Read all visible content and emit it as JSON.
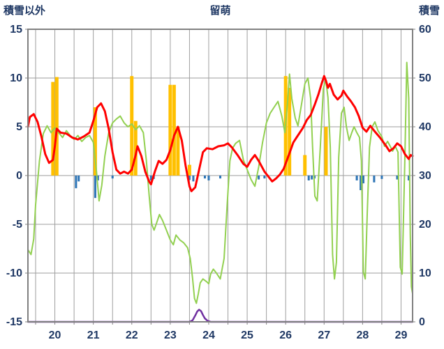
{
  "chart_data": {
    "type": "line",
    "title": "留萌",
    "legend": "none",
    "grid": true,
    "colors": {
      "grid": "#9E9E9E",
      "border": "#808080",
      "tick_label": "#1F3864",
      "temperature": "#FF0000",
      "green_series": "#92D050",
      "sunshine_bars": "#FFC000",
      "precip_bars": "#2E75B6",
      "snow_depth": "#7030A0"
    },
    "left_axis": {
      "label": "積雪以外",
      "min": -15,
      "max": 15,
      "ticks": [
        15,
        10,
        5,
        0,
        -5,
        -10,
        -15
      ]
    },
    "right_axis": {
      "label": "積雪",
      "min": 0,
      "max": 60,
      "ticks": [
        60,
        50,
        40,
        30,
        20,
        10,
        0
      ]
    },
    "x_axis": {
      "min": 19.3,
      "max": 29.3,
      "tick_values": [
        20,
        21,
        22,
        23,
        24,
        25,
        26,
        27,
        28,
        29
      ],
      "grid_start": 19.5,
      "grid_end": 29.0,
      "grid_step": 0.5
    },
    "series": [
      {
        "name": "sunshine-bars",
        "type": "bar",
        "axis": "left",
        "color": "#FFC000",
        "bar_width_days": 0.09,
        "points": [
          [
            19.95,
            9.6
          ],
          [
            20.05,
            10.1
          ],
          [
            21.05,
            7.0
          ],
          [
            22.0,
            10.2
          ],
          [
            22.1,
            5.6
          ],
          [
            23.0,
            9.3
          ],
          [
            23.1,
            9.3
          ],
          [
            23.2,
            5.0
          ],
          [
            23.5,
            1.1
          ],
          [
            26.0,
            10.2
          ],
          [
            26.1,
            9.0
          ],
          [
            26.5,
            2.1
          ],
          [
            27.05,
            5.0
          ]
        ]
      },
      {
        "name": "precipitation-bars",
        "type": "bar",
        "axis": "left",
        "color": "#2E75B6",
        "bar_width_days": 0.055,
        "points": [
          [
            20.55,
            -1.3
          ],
          [
            20.62,
            -0.6
          ],
          [
            21.05,
            -2.3
          ],
          [
            21.12,
            -0.5
          ],
          [
            21.5,
            -0.3
          ],
          [
            22.5,
            -0.5
          ],
          [
            22.57,
            -0.35
          ],
          [
            23.5,
            -0.45
          ],
          [
            23.6,
            -0.6
          ],
          [
            23.9,
            -0.3
          ],
          [
            24.0,
            -0.5
          ],
          [
            24.3,
            -0.3
          ],
          [
            25.3,
            -0.4
          ],
          [
            25.45,
            -0.3
          ],
          [
            26.6,
            -0.5
          ],
          [
            26.68,
            -0.4
          ],
          [
            26.75,
            -0.3
          ],
          [
            27.85,
            -0.5
          ],
          [
            27.95,
            -1.5
          ],
          [
            28.02,
            -0.8
          ],
          [
            28.3,
            -0.7
          ],
          [
            28.5,
            -0.35
          ],
          [
            28.9,
            -0.4
          ],
          [
            29.2,
            -0.5
          ]
        ]
      },
      {
        "name": "snow-depth-line",
        "type": "line",
        "axis": "right",
        "color": "#7030A0",
        "width": 2.5,
        "points": [
          [
            19.3,
            0
          ],
          [
            23.5,
            0
          ],
          [
            23.58,
            0.3
          ],
          [
            23.65,
            1.3
          ],
          [
            23.7,
            2.1
          ],
          [
            23.75,
            2.5
          ],
          [
            23.8,
            2.2
          ],
          [
            23.85,
            1.4
          ],
          [
            23.9,
            0.7
          ],
          [
            23.97,
            0.2
          ],
          [
            24.05,
            0
          ],
          [
            29.3,
            0
          ]
        ]
      },
      {
        "name": "green-line",
        "type": "line",
        "axis": "left",
        "color": "#92D050",
        "width": 2,
        "points": [
          [
            19.3,
            -7.6
          ],
          [
            19.38,
            -8.1
          ],
          [
            19.45,
            -6.5
          ],
          [
            19.5,
            -3.0
          ],
          [
            19.6,
            1.5
          ],
          [
            19.7,
            4.3
          ],
          [
            19.8,
            5.1
          ],
          [
            19.9,
            4.4
          ],
          [
            20.0,
            4.9
          ],
          [
            20.1,
            4.4
          ],
          [
            20.2,
            3.9
          ],
          [
            20.3,
            4.6
          ],
          [
            20.4,
            4.1
          ],
          [
            20.5,
            3.7
          ],
          [
            20.6,
            4.1
          ],
          [
            20.7,
            3.5
          ],
          [
            20.8,
            3.9
          ],
          [
            20.9,
            4.1
          ],
          [
            21.0,
            3.4
          ],
          [
            21.08,
            0.5
          ],
          [
            21.15,
            -2.6
          ],
          [
            21.22,
            -1.0
          ],
          [
            21.3,
            2.0
          ],
          [
            21.4,
            4.4
          ],
          [
            21.5,
            5.4
          ],
          [
            21.6,
            5.8
          ],
          [
            21.7,
            6.1
          ],
          [
            21.8,
            5.4
          ],
          [
            21.9,
            5.0
          ],
          [
            22.0,
            5.3
          ],
          [
            22.1,
            4.7
          ],
          [
            22.2,
            5.1
          ],
          [
            22.3,
            4.4
          ],
          [
            22.38,
            1.5
          ],
          [
            22.45,
            -2.0
          ],
          [
            22.52,
            -5.0
          ],
          [
            22.58,
            -5.6
          ],
          [
            22.65,
            -4.8
          ],
          [
            22.72,
            -4.0
          ],
          [
            22.8,
            -4.6
          ],
          [
            22.9,
            -5.6
          ],
          [
            23.0,
            -6.6
          ],
          [
            23.08,
            -7.1
          ],
          [
            23.15,
            -6.1
          ],
          [
            23.25,
            -6.6
          ],
          [
            23.35,
            -6.9
          ],
          [
            23.45,
            -7.4
          ],
          [
            23.52,
            -8.5
          ],
          [
            23.58,
            -10.5
          ],
          [
            23.63,
            -12.6
          ],
          [
            23.68,
            -13.1
          ],
          [
            23.73,
            -12.1
          ],
          [
            23.78,
            -11.0
          ],
          [
            23.85,
            -10.6
          ],
          [
            23.95,
            -10.9
          ],
          [
            24.0,
            -11.1
          ],
          [
            24.05,
            -10.1
          ],
          [
            24.12,
            -9.6
          ],
          [
            24.2,
            -10.0
          ],
          [
            24.3,
            -10.6
          ],
          [
            24.4,
            -8.5
          ],
          [
            24.48,
            -3.0
          ],
          [
            24.55,
            1.5
          ],
          [
            24.62,
            2.8
          ],
          [
            24.7,
            3.3
          ],
          [
            24.8,
            3.6
          ],
          [
            24.9,
            1.6
          ],
          [
            25.0,
            0.6
          ],
          [
            25.1,
            -0.4
          ],
          [
            25.2,
            -1.1
          ],
          [
            25.3,
            0.9
          ],
          [
            25.4,
            3.4
          ],
          [
            25.5,
            5.4
          ],
          [
            25.6,
            6.4
          ],
          [
            25.7,
            7.0
          ],
          [
            25.8,
            7.6
          ],
          [
            25.9,
            6.1
          ],
          [
            25.98,
            4.4
          ],
          [
            26.05,
            7.5
          ],
          [
            26.1,
            10.4
          ],
          [
            26.16,
            7.9
          ],
          [
            26.25,
            5.9
          ],
          [
            26.32,
            5.1
          ],
          [
            26.4,
            7.0
          ],
          [
            26.5,
            9.4
          ],
          [
            26.58,
            10.0
          ],
          [
            26.65,
            7.9
          ],
          [
            26.7,
            3.0
          ],
          [
            26.76,
            -2.1
          ],
          [
            26.82,
            -2.6
          ],
          [
            26.9,
            2.9
          ],
          [
            26.98,
            8.9
          ],
          [
            27.04,
            9.9
          ],
          [
            27.1,
            8.0
          ],
          [
            27.16,
            2.9
          ],
          [
            27.22,
            -8.1
          ],
          [
            27.27,
            -10.6
          ],
          [
            27.32,
            -8.9
          ],
          [
            27.38,
            1.9
          ],
          [
            27.45,
            6.4
          ],
          [
            27.52,
            7.0
          ],
          [
            27.58,
            5.0
          ],
          [
            27.65,
            3.6
          ],
          [
            27.72,
            4.4
          ],
          [
            27.78,
            5.0
          ],
          [
            27.85,
            4.4
          ],
          [
            27.92,
            3.9
          ],
          [
            27.97,
            1.5
          ],
          [
            28.02,
            -9.9
          ],
          [
            28.07,
            -10.6
          ],
          [
            28.12,
            -4.0
          ],
          [
            28.18,
            2.9
          ],
          [
            28.25,
            5.0
          ],
          [
            28.32,
            5.5
          ],
          [
            28.4,
            4.6
          ],
          [
            28.5,
            4.0
          ],
          [
            28.57,
            3.0
          ],
          [
            28.65,
            3.5
          ],
          [
            28.72,
            3.0
          ],
          [
            28.78,
            2.5
          ],
          [
            28.85,
            3.0
          ],
          [
            28.92,
            2.4
          ],
          [
            28.98,
            -9.4
          ],
          [
            29.03,
            -10.1
          ],
          [
            29.1,
            1.9
          ],
          [
            29.15,
            11.6
          ],
          [
            29.2,
            7.9
          ],
          [
            29.24,
            -6.0
          ],
          [
            29.27,
            -11.4
          ],
          [
            29.3,
            -12.1
          ]
        ]
      },
      {
        "name": "temperature-line",
        "type": "line",
        "axis": "left",
        "color": "#FF0000",
        "width": 3,
        "points": [
          [
            19.3,
            5.0
          ],
          [
            19.35,
            6.0
          ],
          [
            19.45,
            6.3
          ],
          [
            19.55,
            5.5
          ],
          [
            19.65,
            4.0
          ],
          [
            19.75,
            2.2
          ],
          [
            19.85,
            1.3
          ],
          [
            19.95,
            1.6
          ],
          [
            20.0,
            3.0
          ],
          [
            20.05,
            4.8
          ],
          [
            20.15,
            4.4
          ],
          [
            20.3,
            4.3
          ],
          [
            20.45,
            3.9
          ],
          [
            20.6,
            3.7
          ],
          [
            20.75,
            4.0
          ],
          [
            20.9,
            4.4
          ],
          [
            21.0,
            5.6
          ],
          [
            21.1,
            7.0
          ],
          [
            21.2,
            7.4
          ],
          [
            21.3,
            6.6
          ],
          [
            21.4,
            4.8
          ],
          [
            21.5,
            2.4
          ],
          [
            21.6,
            0.6
          ],
          [
            21.7,
            0.2
          ],
          [
            21.8,
            0.4
          ],
          [
            21.9,
            0.2
          ],
          [
            22.0,
            0.6
          ],
          [
            22.1,
            2.1
          ],
          [
            22.15,
            3.0
          ],
          [
            22.25,
            2.0
          ],
          [
            22.35,
            0.4
          ],
          [
            22.45,
            -0.6
          ],
          [
            22.5,
            -0.9
          ],
          [
            22.6,
            0.4
          ],
          [
            22.7,
            1.5
          ],
          [
            22.8,
            1.2
          ],
          [
            22.9,
            1.6
          ],
          [
            23.0,
            2.6
          ],
          [
            23.1,
            4.1
          ],
          [
            23.2,
            5.0
          ],
          [
            23.3,
            3.6
          ],
          [
            23.4,
            1.0
          ],
          [
            23.5,
            -1.1
          ],
          [
            23.55,
            -1.6
          ],
          [
            23.65,
            -1.2
          ],
          [
            23.75,
            0.6
          ],
          [
            23.85,
            2.4
          ],
          [
            23.95,
            2.8
          ],
          [
            24.1,
            2.7
          ],
          [
            24.25,
            3.0
          ],
          [
            24.4,
            3.1
          ],
          [
            24.5,
            3.3
          ],
          [
            24.6,
            2.9
          ],
          [
            24.75,
            2.1
          ],
          [
            24.9,
            1.2
          ],
          [
            25.0,
            0.9
          ],
          [
            25.1,
            1.6
          ],
          [
            25.2,
            2.1
          ],
          [
            25.3,
            1.5
          ],
          [
            25.45,
            0.4
          ],
          [
            25.55,
            -0.1
          ],
          [
            25.65,
            -0.6
          ],
          [
            25.75,
            -0.3
          ],
          [
            25.85,
            0.1
          ],
          [
            25.95,
            0.7
          ],
          [
            26.1,
            2.3
          ],
          [
            26.2,
            3.4
          ],
          [
            26.3,
            4.0
          ],
          [
            26.45,
            4.9
          ],
          [
            26.55,
            5.7
          ],
          [
            26.65,
            6.2
          ],
          [
            26.75,
            7.2
          ],
          [
            26.85,
            8.3
          ],
          [
            26.95,
            9.6
          ],
          [
            27.0,
            10.2
          ],
          [
            27.05,
            9.7
          ],
          [
            27.1,
            9.0
          ],
          [
            27.15,
            9.4
          ],
          [
            27.25,
            8.3
          ],
          [
            27.35,
            7.8
          ],
          [
            27.45,
            8.2
          ],
          [
            27.5,
            8.7
          ],
          [
            27.6,
            8.1
          ],
          [
            27.7,
            7.6
          ],
          [
            27.8,
            7.0
          ],
          [
            27.9,
            6.1
          ],
          [
            28.0,
            4.9
          ],
          [
            28.1,
            4.5
          ],
          [
            28.2,
            5.1
          ],
          [
            28.3,
            4.6
          ],
          [
            28.45,
            3.9
          ],
          [
            28.6,
            3.1
          ],
          [
            28.7,
            2.5
          ],
          [
            28.8,
            2.8
          ],
          [
            28.9,
            3.3
          ],
          [
            29.0,
            3.0
          ],
          [
            29.1,
            2.2
          ],
          [
            29.2,
            1.7
          ],
          [
            29.25,
            2.1
          ],
          [
            29.3,
            2.0
          ]
        ]
      }
    ]
  }
}
